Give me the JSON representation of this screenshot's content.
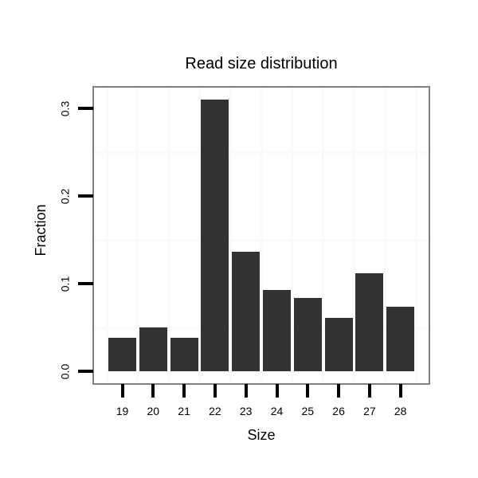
{
  "chart_data": {
    "type": "bar",
    "title": "Read size distribution",
    "xlabel": "Size",
    "ylabel": "Fraction",
    "categories": [
      "19",
      "20",
      "21",
      "22",
      "23",
      "24",
      "25",
      "26",
      "27",
      "28"
    ],
    "values": [
      0.038,
      0.05,
      0.038,
      0.31,
      0.136,
      0.093,
      0.084,
      0.061,
      0.112,
      0.074
    ],
    "y_tick_labels": [
      "0.0",
      "0.1",
      "0.2",
      "0.3"
    ],
    "y_tick_values": [
      0.0,
      0.1,
      0.2,
      0.3
    ],
    "ylim": [
      0,
      0.327
    ],
    "grid": "minor-only",
    "minor_h_grid_values": [
      0.05,
      0.15,
      0.25
    ],
    "legend": "none",
    "colors": {
      "bar": "#333333",
      "panel_border": "#808080",
      "grid": "#fafafa",
      "tick": "#000000",
      "text": "#000000",
      "background": "#ffffff"
    }
  }
}
